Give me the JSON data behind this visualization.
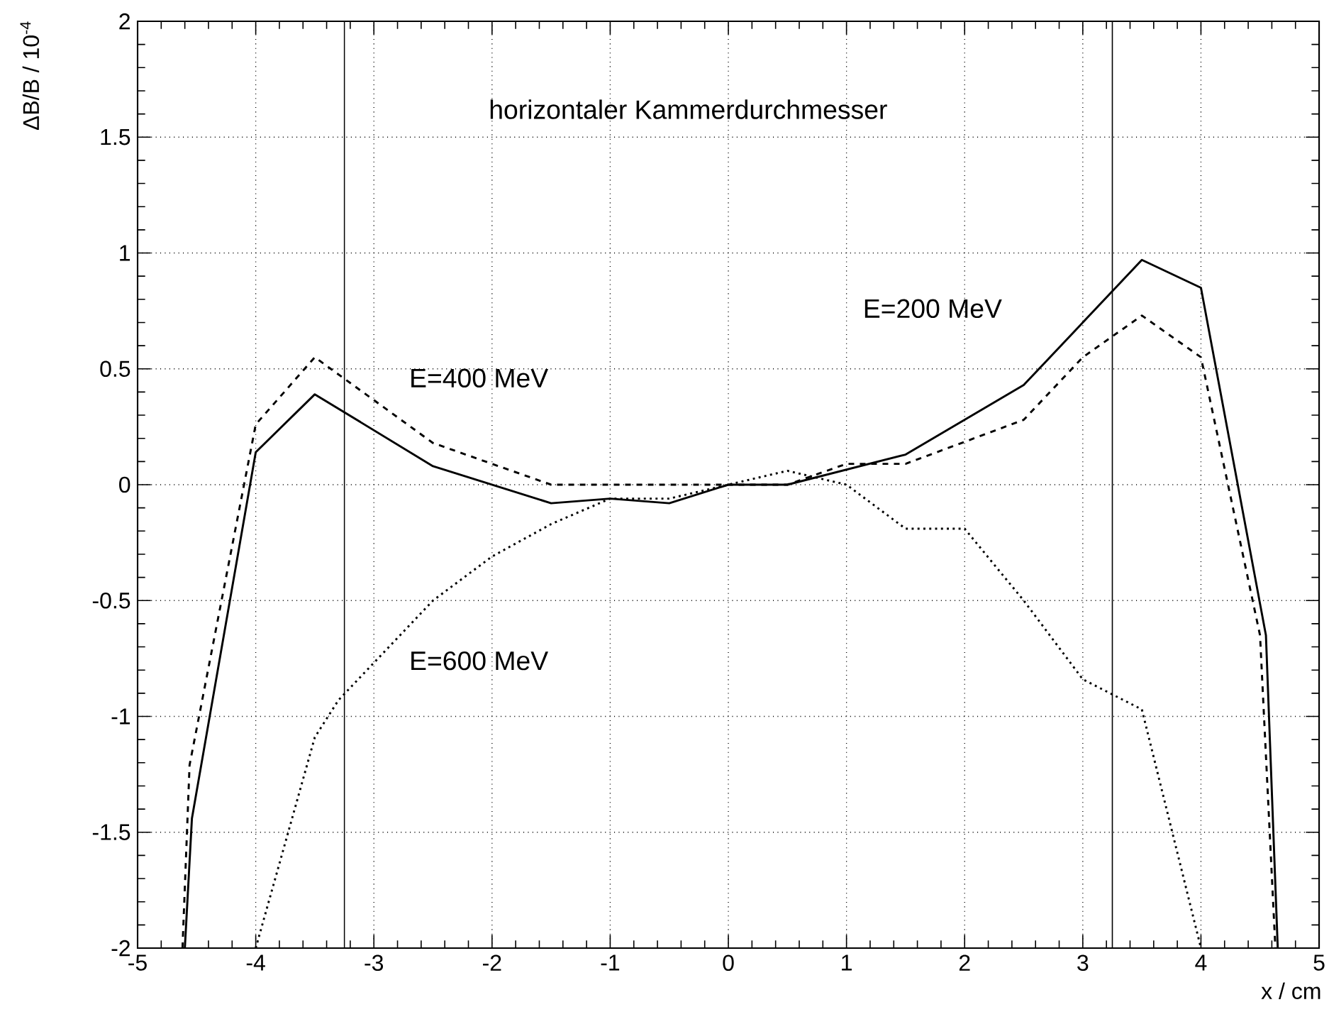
{
  "chart_data": {
    "type": "line",
    "title": "horizontaler Kammerdurchmesser",
    "xlabel": "x / cm",
    "ylabel": "ΔB/B / 10$^{-4}$",
    "xlim": [
      -5,
      5
    ],
    "ylim": [
      -2,
      2
    ],
    "xticks": [
      -5,
      -4,
      -3,
      -2,
      -1,
      0,
      1,
      2,
      3,
      4,
      5
    ],
    "yticks": [
      -2,
      -1.5,
      -1,
      -0.5,
      0,
      0.5,
      1,
      1.5,
      2
    ],
    "grid": true,
    "legend": false,
    "marker": "none",
    "series": [
      {
        "name": "E=200 MeV",
        "color": "#000000",
        "line_style": "solid",
        "x": [
          -4.6,
          -4.54,
          -4,
          -3.5,
          -2.5,
          -1.5,
          -1,
          -0.5,
          0,
          0.5,
          1.5,
          2.5,
          3.5,
          4,
          4.55,
          4.65
        ],
        "values": [
          -2,
          -1.44,
          0.14,
          0.39,
          0.08,
          -0.08,
          -0.06,
          -0.08,
          0,
          0,
          0.13,
          0.43,
          0.97,
          0.85,
          -0.65,
          -2
        ]
      },
      {
        "name": "E=400 MeV",
        "color": "#000000",
        "line_style": "dashed",
        "x": [
          -4.62,
          -4.56,
          -4,
          -3.5,
          -2.5,
          -1.5,
          -1,
          -0.5,
          0,
          0.5,
          1,
          1.5,
          2.5,
          3,
          3.5,
          4,
          4.5,
          4.63
        ],
        "values": [
          -2,
          -1.21,
          0.26,
          0.55,
          0.18,
          0,
          0,
          0,
          0,
          0,
          0.09,
          0.09,
          0.28,
          0.55,
          0.73,
          0.55,
          -0.65,
          -2
        ]
      },
      {
        "name": "E=600 MeV",
        "color": "#000000",
        "line_style": "dotted",
        "x": [
          -4,
          -3.5,
          -3.3,
          -2.5,
          -2,
          -1.5,
          -1,
          -0.5,
          0,
          0.5,
          1,
          1.5,
          2,
          2.5,
          3,
          3.5,
          4
        ],
        "values": [
          -2,
          -1.09,
          -0.93,
          -0.5,
          -0.31,
          -0.17,
          -0.06,
          -0.06,
          0,
          0.06,
          0,
          -0.19,
          -0.19,
          -0.5,
          -0.84,
          -0.97,
          -2
        ]
      }
    ],
    "ref_lines": [
      {
        "axis": "x",
        "value": -3.25,
        "color": "#000000",
        "line_style": "solid"
      },
      {
        "axis": "x",
        "value": 3.25,
        "color": "#000000",
        "line_style": "solid"
      }
    ]
  }
}
